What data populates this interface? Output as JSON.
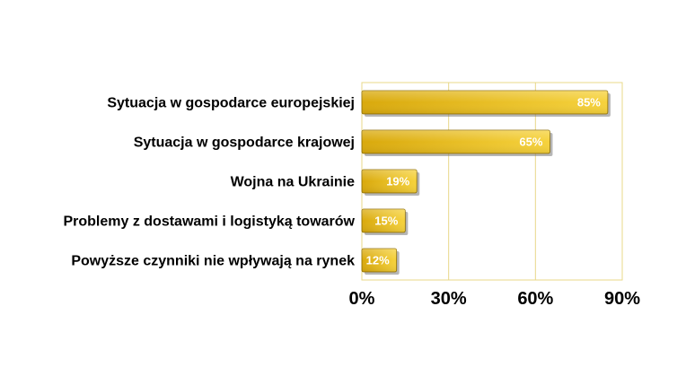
{
  "chart_data": {
    "type": "bar",
    "orientation": "horizontal",
    "categories": [
      "Sytuacja w gospodarce europejskiej",
      "Sytuacja w gospodarce krajowej",
      "Wojna na Ukrainie",
      "Problemy z dostawami i logistyką towarów",
      "Powyższe czynniki nie wpływają na rynek"
    ],
    "values": [
      85,
      65,
      19,
      15,
      12
    ],
    "data_labels": [
      "85%",
      "65%",
      "19%",
      "15%",
      "12%"
    ],
    "x_ticks": [
      "0%",
      "30%",
      "60%",
      "90%"
    ],
    "xlim": [
      0,
      90
    ],
    "grid": true,
    "legend": "none",
    "colors": {
      "bar_light": "#f6d23c",
      "bar_dark": "#d9a90c",
      "bar_edge": "#8a6a00",
      "grid": "#e8d88a",
      "shadow": "#7a7a7a"
    }
  }
}
